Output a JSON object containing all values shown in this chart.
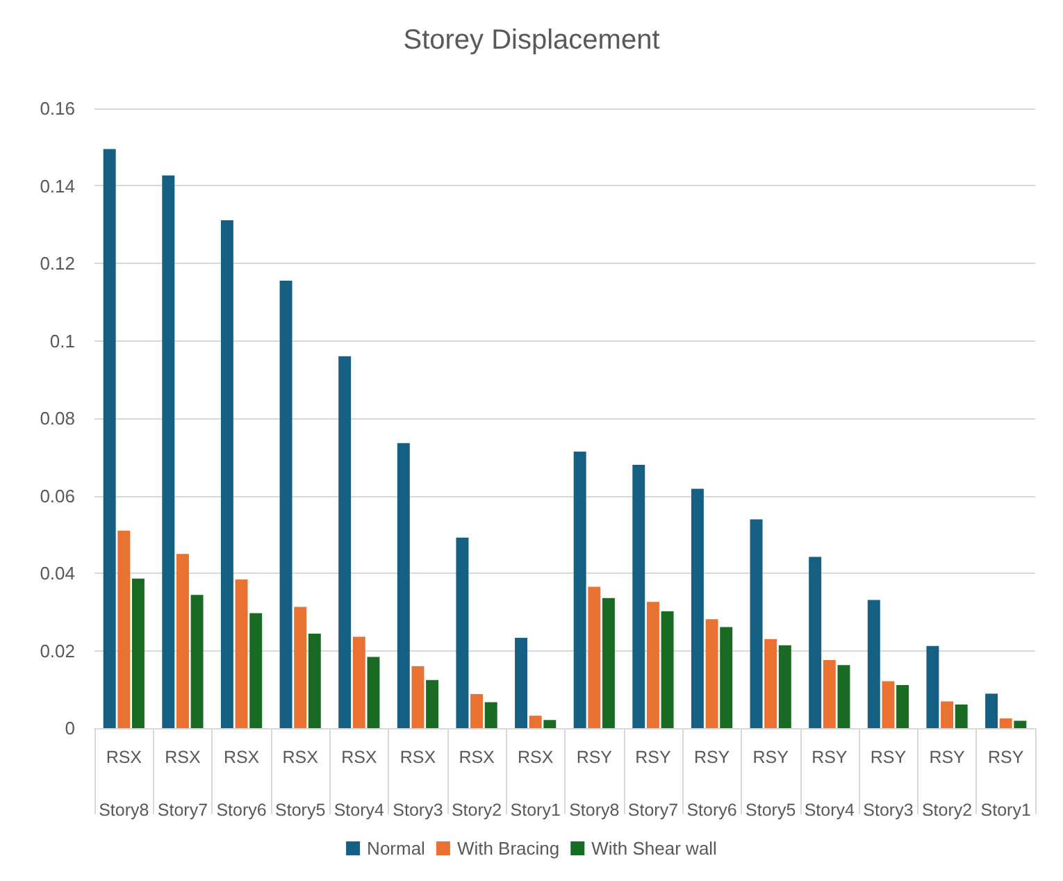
{
  "chart_data": {
    "type": "bar",
    "title": "Storey Displacement",
    "categories": [
      "RSX\nStory8",
      "RSX\nStory7",
      "RSX\nStory6",
      "RSX\nStory5",
      "RSX\nStory4",
      "RSX\nStory3",
      "RSX\nStory2",
      "RSX\nStory1",
      "RSY\nStory8",
      "RSY\nStory7",
      "RSY\nStory6",
      "RSY\nStory5",
      "RSY\nStory4",
      "RSY\nStory3",
      "RSY\nStory2",
      "RSY\nStory1"
    ],
    "series": [
      {
        "name": "Normal",
        "color": "#156082",
        "values": [
          0.1495,
          0.1427,
          0.1311,
          0.1155,
          0.096,
          0.0736,
          0.0492,
          0.0233,
          0.0714,
          0.068,
          0.0618,
          0.0539,
          0.0442,
          0.0331,
          0.0212,
          0.0089
        ]
      },
      {
        "name": "With Bracing",
        "color": "#e97132",
        "values": [
          0.051,
          0.045,
          0.0384,
          0.0313,
          0.0236,
          0.016,
          0.0088,
          0.0032,
          0.0365,
          0.0326,
          0.0281,
          0.023,
          0.0176,
          0.0121,
          0.0069,
          0.0025
        ]
      },
      {
        "name": "With Shear wall",
        "color": "#196b24",
        "values": [
          0.0386,
          0.0344,
          0.0297,
          0.0244,
          0.0184,
          0.0124,
          0.0067,
          0.0021,
          0.0336,
          0.0302,
          0.0261,
          0.0214,
          0.0163,
          0.0111,
          0.0061,
          0.0019
        ]
      }
    ],
    "ylim": [
      0,
      0.16
    ],
    "yticks": [
      0,
      0.02,
      0.04,
      0.06,
      0.08,
      0.1,
      0.12,
      0.14,
      0.16
    ],
    "grid": "y",
    "legend": "bottom"
  }
}
